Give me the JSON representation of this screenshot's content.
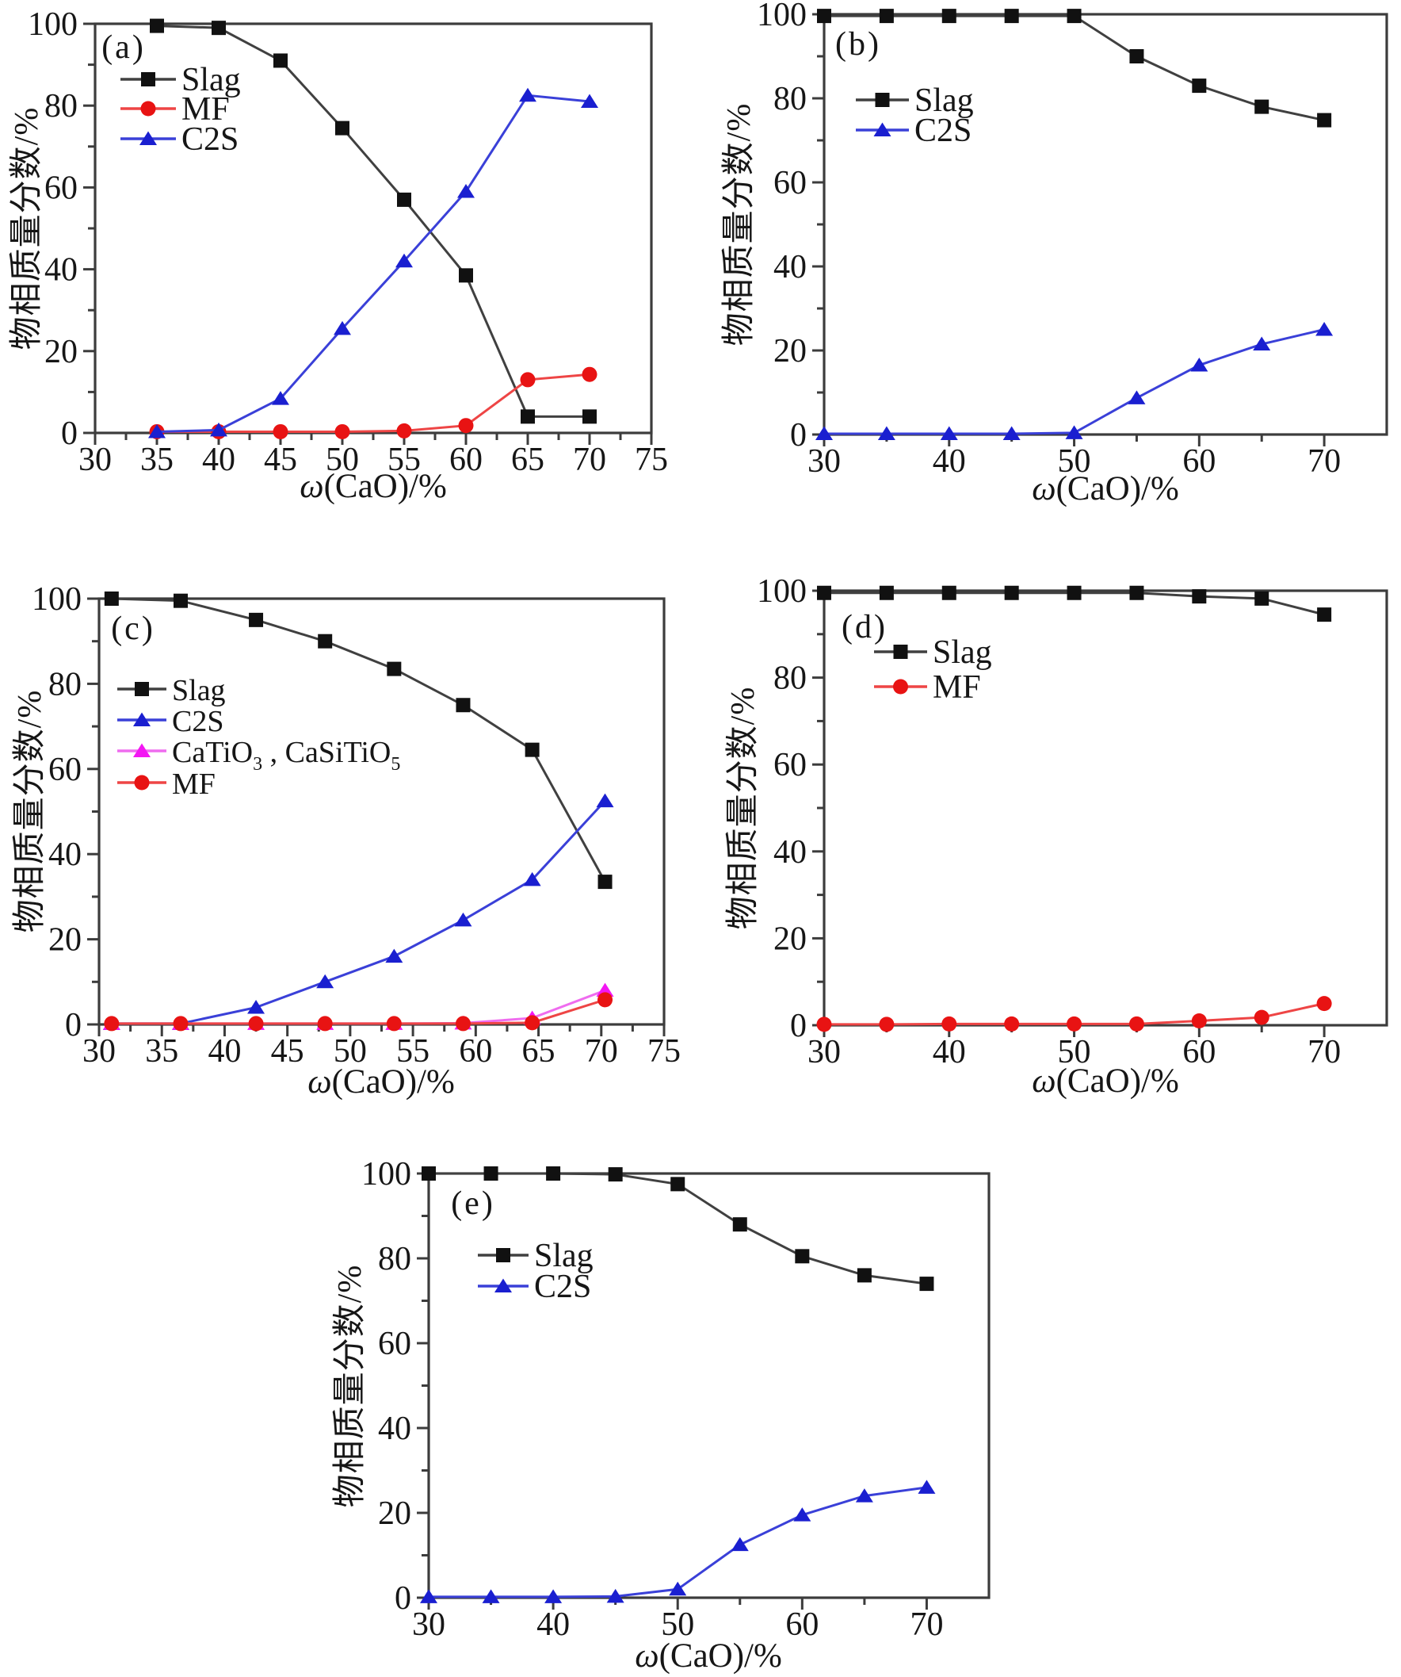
{
  "figure": {
    "background": "#ffffff"
  },
  "axes": {
    "xlabel": "ω(CaO)/%",
    "xlabel_parts": [
      {
        "t": "ω",
        "italic": true
      },
      {
        "t": "(CaO)/%"
      }
    ],
    "ylabel": "物相质量分数/%"
  },
  "colors": {
    "slag_marker": "#111111",
    "slag_line": "#404040",
    "mf_marker": "#e81313",
    "mf_line": "#ee4545",
    "c2s_marker": "#1a1fd0",
    "c2s_line": "#3a40d8",
    "catio_marker": "#f316f3",
    "catio_line": "#ef6cef",
    "frame": "#3c3c3c"
  },
  "chart_data": [
    {
      "id": "a",
      "panel_label": "(a)",
      "type": "line",
      "xlabel": "ω(CaO)/%",
      "ylabel": "物相质量分数/%",
      "xlim": [
        30,
        75
      ],
      "ylim": [
        0,
        100
      ],
      "x_tick_label_step": 5,
      "x": [
        35,
        40,
        45,
        50,
        55,
        60,
        65,
        70
      ],
      "series": [
        {
          "name": "Slag",
          "marker": "square",
          "marker_color": "#111111",
          "line_color": "#404040",
          "values": [
            99.5,
            99,
            91,
            74.5,
            57,
            38.5,
            4,
            4
          ]
        },
        {
          "name": "MF",
          "marker": "circle",
          "marker_color": "#e81313",
          "line_color": "#ee4545",
          "values": [
            0.3,
            0.3,
            0.3,
            0.3,
            0.5,
            1.8,
            13,
            14.3
          ]
        },
        {
          "name": "C2S",
          "marker": "triangle",
          "marker_color": "#1a1fd0",
          "line_color": "#3a40d8",
          "values": [
            0.3,
            0.7,
            8.4,
            25.5,
            42,
            59,
            82.5,
            81
          ]
        }
      ],
      "legend": [
        "Slag",
        "MF",
        "C2S"
      ]
    },
    {
      "id": "b",
      "panel_label": "(b)",
      "type": "line",
      "xlabel": "ω(CaO)/%",
      "ylabel": "物相质量分数/%",
      "xlim": [
        30,
        75
      ],
      "ylim": [
        0,
        100
      ],
      "x_tick_label_step": 10,
      "x": [
        30,
        35,
        40,
        45,
        50,
        55,
        60,
        65,
        70
      ],
      "series": [
        {
          "name": "Slag",
          "marker": "square",
          "marker_color": "#111111",
          "line_color": "#404040",
          "values": [
            99.6,
            99.6,
            99.6,
            99.6,
            99.6,
            90,
            83,
            78,
            74.8
          ]
        },
        {
          "name": "C2S",
          "marker": "triangle",
          "marker_color": "#1a1fd0",
          "line_color": "#3a40d8",
          "values": [
            0.2,
            0.2,
            0.2,
            0.2,
            0.4,
            8.7,
            16.5,
            21.5,
            25
          ]
        }
      ],
      "legend": [
        "Slag",
        "C2S"
      ]
    },
    {
      "id": "c",
      "panel_label": "(c)",
      "type": "line",
      "xlabel": "ω(CaO)/%",
      "ylabel": "物相质量分数/%",
      "xlim": [
        30,
        75
      ],
      "ylim": [
        0,
        100
      ],
      "x_tick_label_step": 5,
      "x": [
        31,
        36.5,
        42.5,
        48,
        53.5,
        59,
        64.5,
        70.3
      ],
      "series": [
        {
          "name": "Slag",
          "marker": "square",
          "marker_color": "#111111",
          "line_color": "#404040",
          "values": [
            100,
            99.5,
            95,
            90,
            83.5,
            75,
            64.5,
            33.5
          ]
        },
        {
          "name": "C2S",
          "marker": "triangle",
          "marker_color": "#1a1fd0",
          "line_color": "#3a40d8",
          "values": [
            0.2,
            0.2,
            4,
            10,
            16,
            24.5,
            34,
            52.5
          ]
        },
        {
          "name": "CaTiO3,CaSiTiO5",
          "label_parts": [
            {
              "t": "CaTiO"
            },
            {
              "t": "3",
              "sub": true
            },
            {
              "t": " , "
            },
            {
              "t": "CaSiTiO"
            },
            {
              "t": "5",
              "sub": true
            }
          ],
          "marker": "triangle",
          "marker_color": "#f316f3",
          "line_color": "#ef6cef",
          "values": [
            0.2,
            0.2,
            0.2,
            0.2,
            0.2,
            0.3,
            1.5,
            8
          ]
        },
        {
          "name": "MF",
          "marker": "circle",
          "marker_color": "#e81313",
          "line_color": "#ee4545",
          "values": [
            0.2,
            0.2,
            0.2,
            0.2,
            0.2,
            0.2,
            0.4,
            5.8
          ]
        }
      ],
      "legend": [
        "Slag",
        "C2S",
        "CaTiO3,CaSiTiO5",
        "MF"
      ]
    },
    {
      "id": "d",
      "panel_label": "(d)",
      "type": "line",
      "xlabel": "ω(CaO)/%",
      "ylabel": "物相质量分数/%",
      "xlim": [
        30,
        75
      ],
      "ylim": [
        0,
        100
      ],
      "x_tick_label_step": 10,
      "x": [
        30,
        35,
        40,
        45,
        50,
        55,
        60,
        65,
        70
      ],
      "series": [
        {
          "name": "Slag",
          "marker": "square",
          "marker_color": "#111111",
          "line_color": "#404040",
          "values": [
            99.5,
            99.5,
            99.5,
            99.5,
            99.5,
            99.5,
            98.7,
            98.2,
            94.5
          ]
        },
        {
          "name": "MF",
          "marker": "circle",
          "marker_color": "#e81313",
          "line_color": "#ee4545",
          "values": [
            0.2,
            0.2,
            0.3,
            0.3,
            0.3,
            0.3,
            1,
            1.8,
            5
          ]
        }
      ],
      "legend": [
        "Slag",
        "MF"
      ]
    },
    {
      "id": "e",
      "panel_label": "(e)",
      "type": "line",
      "xlabel": "ω(CaO)/%",
      "ylabel": "物相质量分数/%",
      "xlim": [
        30,
        75
      ],
      "ylim": [
        0,
        100
      ],
      "x_tick_label_step": 10,
      "x": [
        30,
        35,
        40,
        45,
        50,
        55,
        60,
        65,
        70
      ],
      "series": [
        {
          "name": "Slag",
          "marker": "square",
          "marker_color": "#111111",
          "line_color": "#404040",
          "values": [
            100,
            100,
            100,
            99.8,
            97.5,
            88,
            80.5,
            76,
            74
          ]
        },
        {
          "name": "C2S",
          "marker": "triangle",
          "marker_color": "#1a1fd0",
          "line_color": "#3a40d8",
          "values": [
            0.2,
            0.2,
            0.2,
            0.3,
            2,
            12.5,
            19.5,
            24,
            26
          ]
        }
      ],
      "legend": [
        "Slag",
        "C2S"
      ]
    }
  ]
}
